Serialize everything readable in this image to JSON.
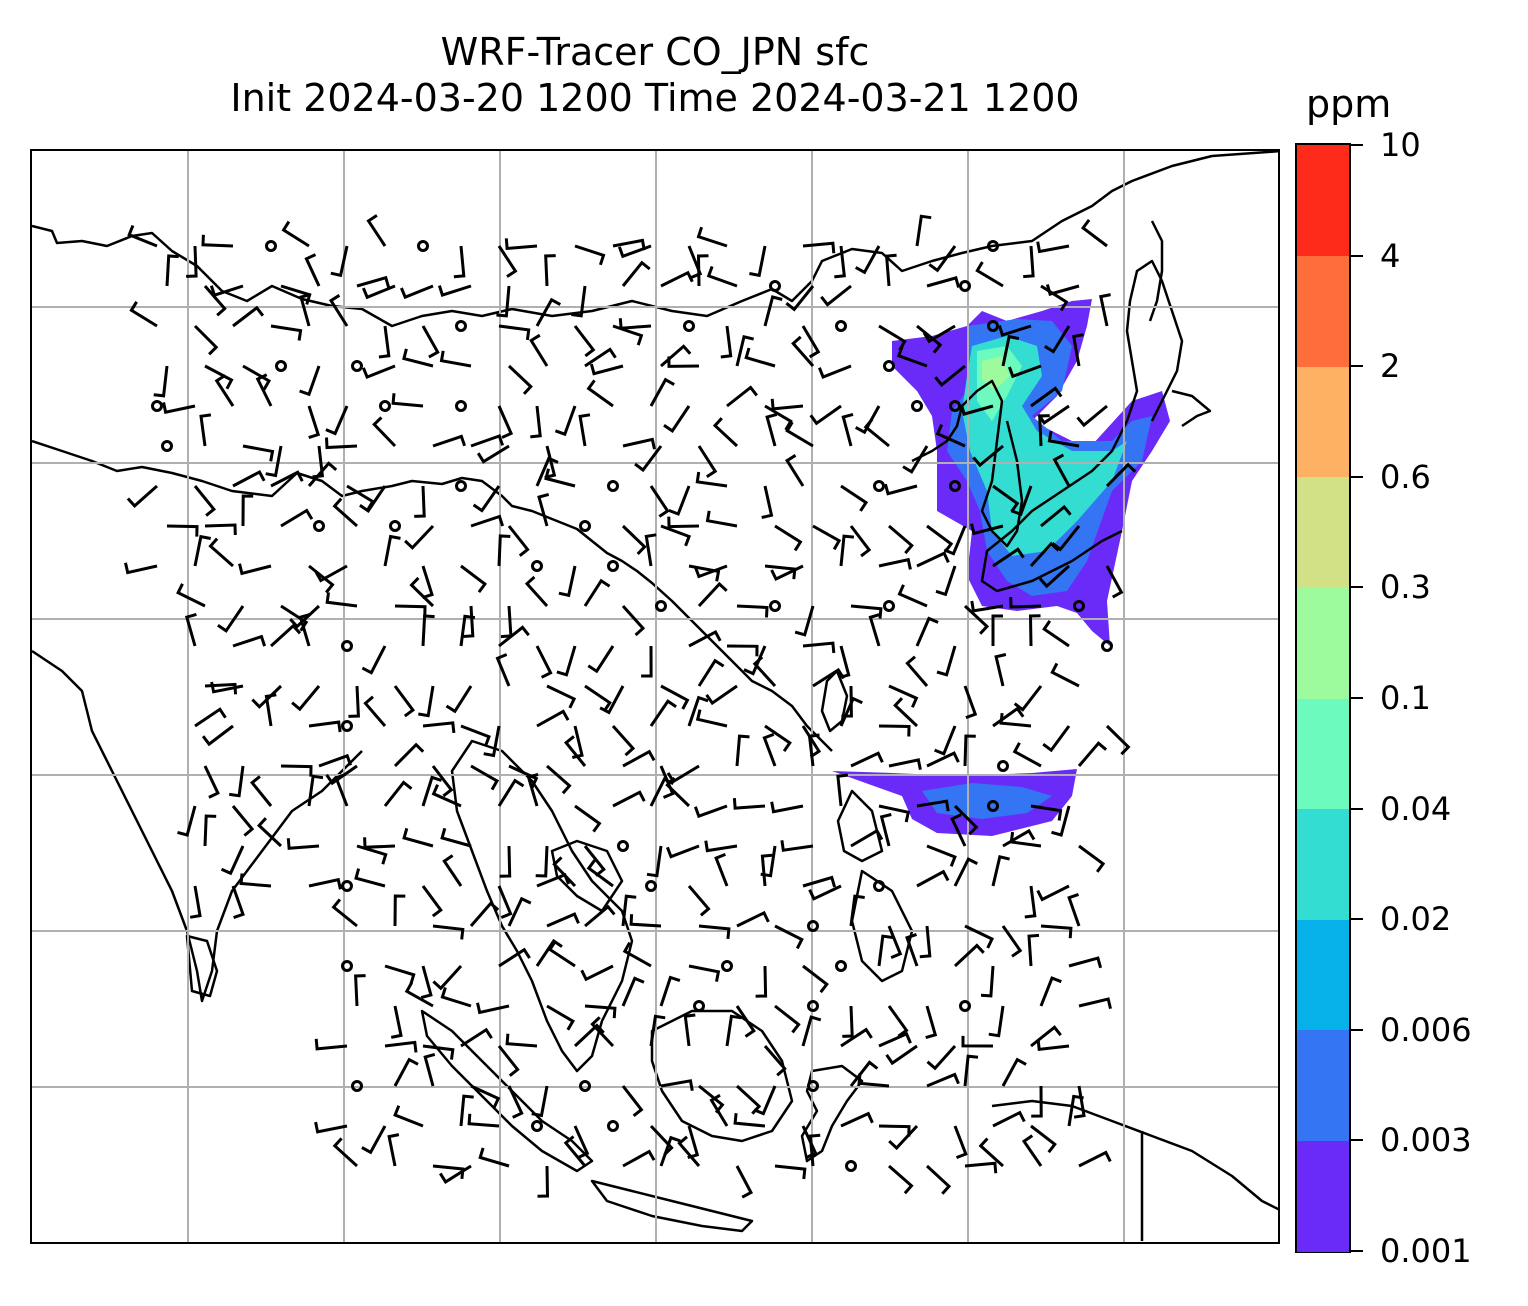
{
  "title": {
    "line1": "WRF-Tracer CO_JPN sfc",
    "line2": "Init 2024-03-20 1200 Time 2024-03-21 1200"
  },
  "colorbar": {
    "unit": "ppm",
    "levels": [
      "0.001",
      "0.003",
      "0.006",
      "0.02",
      "0.04",
      "0.1",
      "0.3",
      "0.6",
      "2",
      "4",
      "10"
    ],
    "colors": [
      "#6a2bf8",
      "#3475f3",
      "#06b0e8",
      "#34ddd1",
      "#6cfabf",
      "#9dfb9d",
      "#d2e186",
      "#feb162",
      "#fe6e3b",
      "#fe2a1a"
    ]
  },
  "map": {
    "gridlines": "on",
    "gridline_color": "#b0b0b0",
    "coastline_color": "#000000",
    "tracer_colors": [
      "#6a2bf8",
      "#3475f3",
      "#34ddd1",
      "#6cfabf",
      "#9dfb9d"
    ],
    "wind_barbs": "black",
    "calm_marker": "circle"
  }
}
